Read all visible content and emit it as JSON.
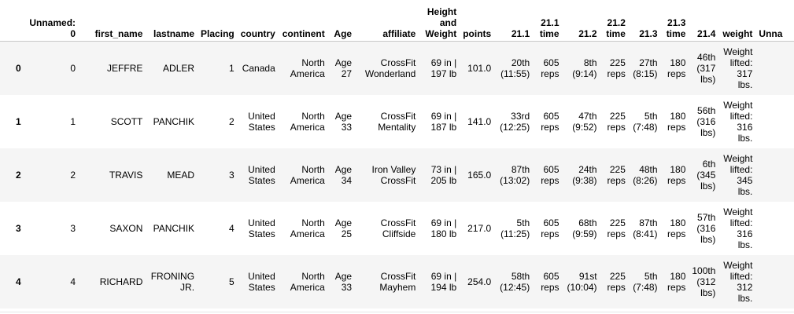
{
  "table": {
    "columns": [
      "Unnamed: 0",
      "first_name",
      "lastname",
      "Placing",
      "country",
      "continent",
      "Age",
      "affiliate",
      "Height and Weight",
      "points",
      "21.1",
      "21.1 time",
      "21.2",
      "21.2 time",
      "21.3",
      "21.3 time",
      "21.4",
      "weight",
      "Unna"
    ],
    "rows": [
      {
        "index": "0",
        "cells": [
          "0",
          "JEFFRE",
          "ADLER",
          "1",
          "Canada",
          "North America",
          "Age 27",
          "CrossFit Wonderland",
          "69 in | 197 lb",
          "101.0",
          "20th (11:55)",
          "605 reps",
          "8th (9:14)",
          "225 reps",
          "27th (8:15)",
          "180 reps",
          "46th (317 lbs)",
          "Weight lifted: 317 lbs.",
          ""
        ]
      },
      {
        "index": "1",
        "cells": [
          "1",
          "SCOTT",
          "PANCHIK",
          "2",
          "United States",
          "North America",
          "Age 33",
          "CrossFit Mentality",
          "69 in | 187 lb",
          "141.0",
          "33rd (12:25)",
          "605 reps",
          "47th (9:52)",
          "225 reps",
          "5th (7:48)",
          "180 reps",
          "56th (316 lbs)",
          "Weight lifted: 316 lbs.",
          ""
        ]
      },
      {
        "index": "2",
        "cells": [
          "2",
          "TRAVIS",
          "MEAD",
          "3",
          "United States",
          "North America",
          "Age 34",
          "Iron Valley CrossFit",
          "73 in | 205 lb",
          "165.0",
          "87th (13:02)",
          "605 reps",
          "24th (9:38)",
          "225 reps",
          "48th (8:26)",
          "180 reps",
          "6th (345 lbs)",
          "Weight lifted: 345 lbs.",
          ""
        ]
      },
      {
        "index": "3",
        "cells": [
          "3",
          "SAXON",
          "PANCHIK",
          "4",
          "United States",
          "North America",
          "Age 25",
          "CrossFit Cliffside",
          "69 in | 180 lb",
          "217.0",
          "5th (11:25)",
          "605 reps",
          "68th (9:59)",
          "225 reps",
          "87th (8:41)",
          "180 reps",
          "57th (316 lbs)",
          "Weight lifted: 316 lbs.",
          ""
        ]
      },
      {
        "index": "4",
        "cells": [
          "4",
          "RICHARD",
          "FRONING JR.",
          "5",
          "United States",
          "North America",
          "Age 33",
          "CrossFit Mayhem",
          "69 in | 194 lb",
          "254.0",
          "58th (12:45)",
          "605 reps",
          "91st (10:04)",
          "225 reps",
          "5th (7:48)",
          "180 reps",
          "100th (312 lbs)",
          "Weight lifted: 312 lbs.",
          ""
        ]
      }
    ]
  }
}
